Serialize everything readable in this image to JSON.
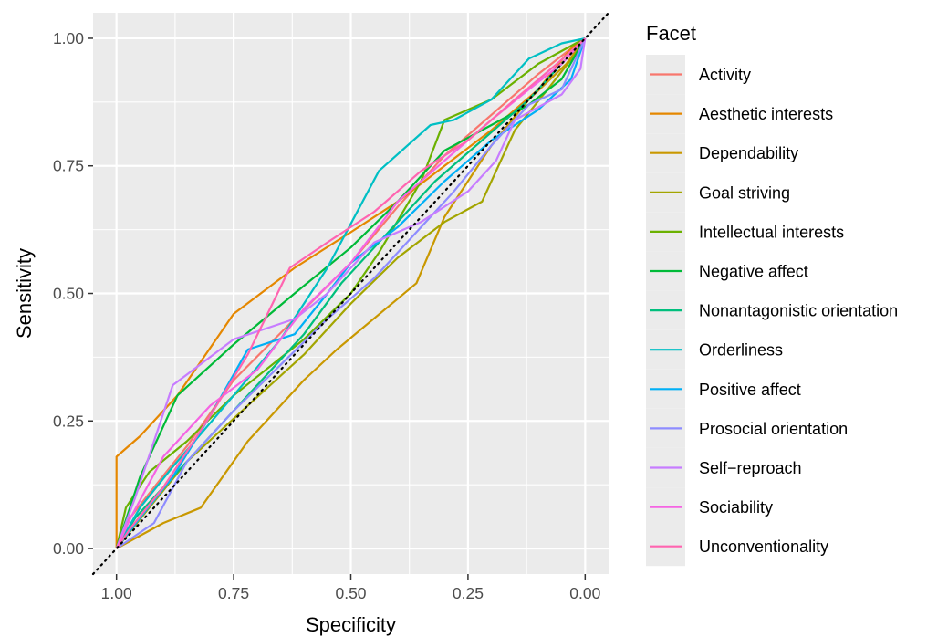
{
  "chart_data": {
    "type": "line",
    "title": "",
    "xlabel": "Specificity",
    "ylabel": "Sensitivity",
    "xlim": [
      1.05,
      -0.05
    ],
    "ylim": [
      -0.05,
      1.05
    ],
    "x_reversed": true,
    "xticks": [
      1.0,
      0.75,
      0.5,
      0.25,
      0.0
    ],
    "xtick_labels": [
      "1.00",
      "0.75",
      "0.50",
      "0.25",
      "0.00"
    ],
    "yticks": [
      0.0,
      0.25,
      0.5,
      0.75,
      1.0
    ],
    "ytick_labels": [
      "0.00",
      "0.25",
      "0.50",
      "0.75",
      "1.00"
    ],
    "grid": true,
    "panel_background": "#EBEBEB",
    "reference_line": {
      "style": "dotted",
      "color": "#000000",
      "from": [
        1.05,
        -0.05
      ],
      "to": [
        -0.05,
        1.05
      ]
    },
    "legend": {
      "title": "Facet",
      "position": "right"
    },
    "series": [
      {
        "name": "Activity",
        "color": "#F8766D",
        "points": [
          [
            1.0,
            0.0
          ],
          [
            0.98,
            0.05
          ],
          [
            0.92,
            0.12
          ],
          [
            0.85,
            0.2
          ],
          [
            0.75,
            0.33
          ],
          [
            0.62,
            0.45
          ],
          [
            0.5,
            0.56
          ],
          [
            0.4,
            0.67
          ],
          [
            0.3,
            0.77
          ],
          [
            0.2,
            0.85
          ],
          [
            0.1,
            0.93
          ],
          [
            0.03,
            0.98
          ],
          [
            0.0,
            1.0
          ]
        ]
      },
      {
        "name": "Aesthetic interests",
        "color": "#E58700",
        "points": [
          [
            1.0,
            0.0
          ],
          [
            1.0,
            0.18
          ],
          [
            0.95,
            0.22
          ],
          [
            0.87,
            0.3
          ],
          [
            0.75,
            0.46
          ],
          [
            0.62,
            0.55
          ],
          [
            0.5,
            0.62
          ],
          [
            0.4,
            0.68
          ],
          [
            0.3,
            0.75
          ],
          [
            0.2,
            0.82
          ],
          [
            0.1,
            0.9
          ],
          [
            0.03,
            0.98
          ],
          [
            0.0,
            1.0
          ]
        ]
      },
      {
        "name": "Dependability",
        "color": "#C99800",
        "points": [
          [
            1.0,
            0.0
          ],
          [
            0.9,
            0.05
          ],
          [
            0.82,
            0.08
          ],
          [
            0.72,
            0.21
          ],
          [
            0.6,
            0.33
          ],
          [
            0.53,
            0.39
          ],
          [
            0.36,
            0.52
          ],
          [
            0.3,
            0.65
          ],
          [
            0.25,
            0.72
          ],
          [
            0.2,
            0.79
          ],
          [
            0.12,
            0.88
          ],
          [
            0.04,
            0.95
          ],
          [
            0.0,
            1.0
          ]
        ]
      },
      {
        "name": "Goal striving",
        "color": "#A3A500",
        "points": [
          [
            1.0,
            0.0
          ],
          [
            0.93,
            0.08
          ],
          [
            0.85,
            0.17
          ],
          [
            0.72,
            0.28
          ],
          [
            0.6,
            0.38
          ],
          [
            0.5,
            0.48
          ],
          [
            0.4,
            0.57
          ],
          [
            0.3,
            0.64
          ],
          [
            0.22,
            0.68
          ],
          [
            0.15,
            0.82
          ],
          [
            0.08,
            0.9
          ],
          [
            0.02,
            0.97
          ],
          [
            0.0,
            1.0
          ]
        ]
      },
      {
        "name": "Intellectual interests",
        "color": "#6BB100",
        "points": [
          [
            1.0,
            0.0
          ],
          [
            0.98,
            0.08
          ],
          [
            0.93,
            0.15
          ],
          [
            0.85,
            0.21
          ],
          [
            0.75,
            0.3
          ],
          [
            0.6,
            0.41
          ],
          [
            0.5,
            0.5
          ],
          [
            0.44,
            0.58
          ],
          [
            0.35,
            0.72
          ],
          [
            0.3,
            0.84
          ],
          [
            0.2,
            0.88
          ],
          [
            0.1,
            0.95
          ],
          [
            0.02,
            0.99
          ],
          [
            0.0,
            1.0
          ]
        ]
      },
      {
        "name": "Negative affect",
        "color": "#00BA38",
        "points": [
          [
            1.0,
            0.0
          ],
          [
            0.95,
            0.14
          ],
          [
            0.87,
            0.3
          ],
          [
            0.75,
            0.4
          ],
          [
            0.62,
            0.5
          ],
          [
            0.5,
            0.59
          ],
          [
            0.4,
            0.68
          ],
          [
            0.3,
            0.78
          ],
          [
            0.2,
            0.83
          ],
          [
            0.12,
            0.87
          ],
          [
            0.05,
            0.92
          ],
          [
            0.0,
            1.0
          ]
        ]
      },
      {
        "name": "Nonantagonistic orientation",
        "color": "#00BF7D",
        "points": [
          [
            1.0,
            0.0
          ],
          [
            0.96,
            0.06
          ],
          [
            0.9,
            0.12
          ],
          [
            0.8,
            0.22
          ],
          [
            0.7,
            0.32
          ],
          [
            0.6,
            0.42
          ],
          [
            0.52,
            0.52
          ],
          [
            0.42,
            0.62
          ],
          [
            0.32,
            0.72
          ],
          [
            0.22,
            0.8
          ],
          [
            0.12,
            0.88
          ],
          [
            0.05,
            0.95
          ],
          [
            0.0,
            1.0
          ]
        ]
      },
      {
        "name": "Orderliness",
        "color": "#00BFC4",
        "points": [
          [
            1.0,
            0.0
          ],
          [
            0.95,
            0.08
          ],
          [
            0.88,
            0.16
          ],
          [
            0.75,
            0.3
          ],
          [
            0.65,
            0.41
          ],
          [
            0.55,
            0.55
          ],
          [
            0.44,
            0.74
          ],
          [
            0.33,
            0.83
          ],
          [
            0.28,
            0.84
          ],
          [
            0.2,
            0.88
          ],
          [
            0.12,
            0.96
          ],
          [
            0.05,
            0.99
          ],
          [
            0.0,
            1.0
          ]
        ]
      },
      {
        "name": "Positive affect",
        "color": "#00B0F6",
        "points": [
          [
            1.0,
            0.0
          ],
          [
            0.95,
            0.06
          ],
          [
            0.88,
            0.14
          ],
          [
            0.8,
            0.26
          ],
          [
            0.72,
            0.39
          ],
          [
            0.62,
            0.42
          ],
          [
            0.55,
            0.5
          ],
          [
            0.5,
            0.56
          ],
          [
            0.4,
            0.63
          ],
          [
            0.3,
            0.72
          ],
          [
            0.2,
            0.8
          ],
          [
            0.1,
            0.86
          ],
          [
            0.03,
            0.92
          ],
          [
            0.0,
            1.0
          ]
        ]
      },
      {
        "name": "Prosocial orientation",
        "color": "#8E8CFF",
        "points": [
          [
            1.0,
            0.0
          ],
          [
            0.92,
            0.05
          ],
          [
            0.85,
            0.17
          ],
          [
            0.75,
            0.27
          ],
          [
            0.65,
            0.36
          ],
          [
            0.55,
            0.45
          ],
          [
            0.45,
            0.53
          ],
          [
            0.36,
            0.62
          ],
          [
            0.28,
            0.7
          ],
          [
            0.2,
            0.79
          ],
          [
            0.12,
            0.87
          ],
          [
            0.05,
            0.9
          ],
          [
            0.0,
            1.0
          ]
        ]
      },
      {
        "name": "Self−reproach",
        "color": "#C77CFF",
        "points": [
          [
            1.0,
            0.0
          ],
          [
            0.96,
            0.1
          ],
          [
            0.88,
            0.32
          ],
          [
            0.75,
            0.41
          ],
          [
            0.62,
            0.45
          ],
          [
            0.55,
            0.5
          ],
          [
            0.45,
            0.6
          ],
          [
            0.35,
            0.64
          ],
          [
            0.25,
            0.7
          ],
          [
            0.19,
            0.76
          ],
          [
            0.15,
            0.84
          ],
          [
            0.05,
            0.89
          ],
          [
            0.01,
            0.94
          ],
          [
            0.0,
            1.0
          ]
        ]
      },
      {
        "name": "Sociability",
        "color": "#F564E3",
        "points": [
          [
            1.0,
            0.0
          ],
          [
            0.97,
            0.06
          ],
          [
            0.9,
            0.18
          ],
          [
            0.8,
            0.28
          ],
          [
            0.7,
            0.35
          ],
          [
            0.6,
            0.47
          ],
          [
            0.5,
            0.56
          ],
          [
            0.4,
            0.68
          ],
          [
            0.3,
            0.76
          ],
          [
            0.2,
            0.84
          ],
          [
            0.12,
            0.9
          ],
          [
            0.05,
            0.95
          ],
          [
            0.0,
            1.0
          ]
        ]
      },
      {
        "name": "Unconventionality",
        "color": "#FF64B0",
        "points": [
          [
            1.0,
            0.0
          ],
          [
            0.97,
            0.04
          ],
          [
            0.9,
            0.12
          ],
          [
            0.8,
            0.26
          ],
          [
            0.72,
            0.38
          ],
          [
            0.63,
            0.55
          ],
          [
            0.55,
            0.6
          ],
          [
            0.45,
            0.66
          ],
          [
            0.35,
            0.74
          ],
          [
            0.25,
            0.8
          ],
          [
            0.15,
            0.88
          ],
          [
            0.06,
            0.95
          ],
          [
            0.0,
            1.0
          ]
        ]
      }
    ]
  }
}
